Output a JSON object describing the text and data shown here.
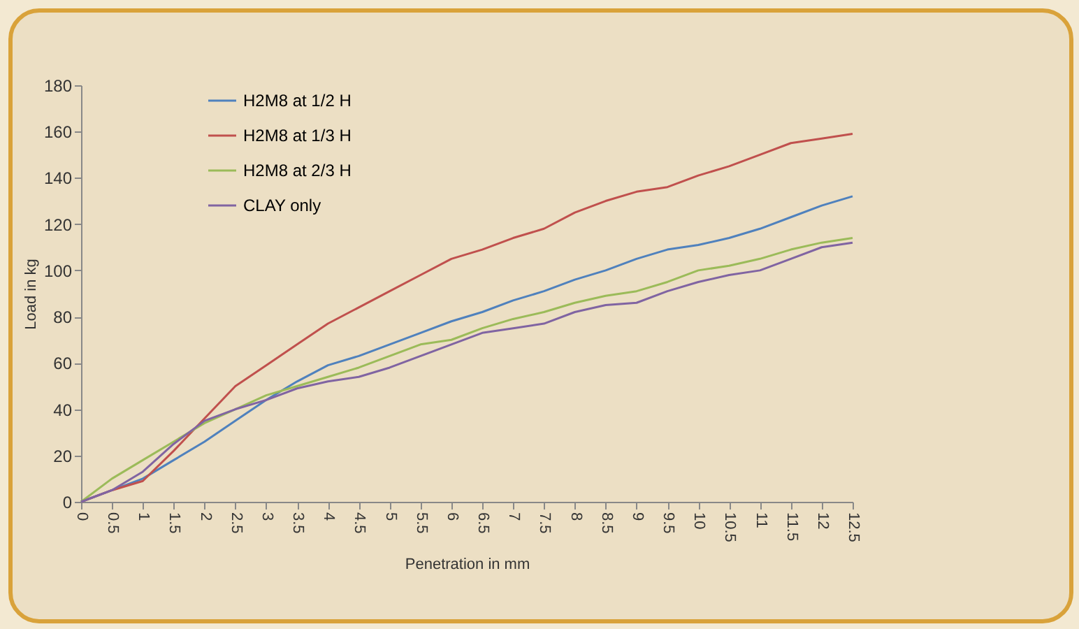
{
  "chart_data": {
    "type": "line",
    "xlabel": "Penetration in mm",
    "ylabel": "Load in kg",
    "categories": [
      "0",
      "0.5",
      "1",
      "1.5",
      "2",
      "2.5",
      "3",
      "3.5",
      "4",
      "4.5",
      "5",
      "5.5",
      "6",
      "6.5",
      "7",
      "7.5",
      "8",
      "8.5",
      "9",
      "9.5",
      "10",
      "10.5",
      "11",
      "11.5",
      "12",
      "12.5"
    ],
    "series": [
      {
        "name": "H2M8 at 1/2  H",
        "color": "#4f81bd",
        "values": [
          0,
          5,
          10,
          18,
          26,
          35,
          44,
          52,
          59,
          63,
          68,
          73,
          78,
          82,
          87,
          91,
          96,
          100,
          105,
          109,
          111,
          114,
          118,
          123,
          128,
          132
        ]
      },
      {
        "name": "H2M8 at 1/3 H",
        "color": "#c0504d",
        "values": [
          0,
          5,
          9,
          22,
          36,
          50,
          59,
          68,
          77,
          84,
          91,
          98,
          105,
          109,
          114,
          118,
          125,
          130,
          134,
          136,
          141,
          145,
          150,
          155,
          157,
          159
        ]
      },
      {
        "name": "H2M8 at 2/3 H",
        "color": "#9bbb59",
        "values": [
          0,
          10,
          18,
          26,
          34,
          40,
          46,
          50,
          54,
          58,
          63,
          68,
          70,
          75,
          79,
          82,
          86,
          89,
          91,
          95,
          100,
          102,
          105,
          109,
          112,
          114
        ]
      },
      {
        "name": "CLAY only",
        "color": "#8064a2",
        "values": [
          0,
          5,
          13,
          25,
          35,
          40,
          44,
          49,
          52,
          54,
          58,
          63,
          68,
          73,
          75,
          77,
          82,
          85,
          86,
          91,
          95,
          98,
          100,
          105,
          110,
          112
        ]
      }
    ],
    "ylim": [
      0,
      180
    ],
    "yticks": [
      0,
      20,
      40,
      60,
      80,
      100,
      120,
      140,
      160,
      180
    ],
    "grid": false,
    "legend": "top left",
    "marker": "none",
    "line_style": "solid"
  }
}
